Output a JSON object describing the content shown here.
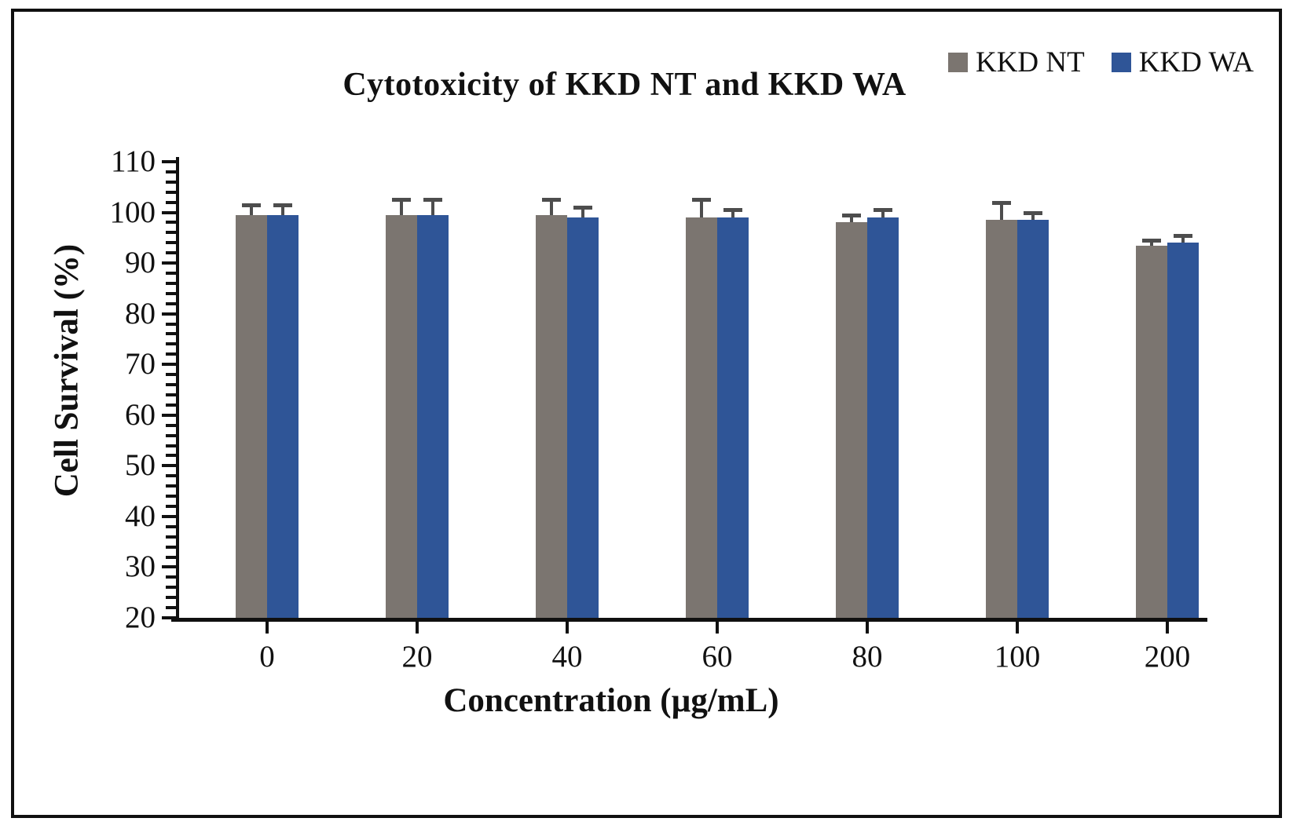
{
  "chart_data": {
    "type": "bar",
    "title": "Cytotoxicity of KKD NT and KKD WA",
    "xlabel": "Concentration (µg/mL)",
    "ylabel": "Cell Survival (%)",
    "categories": [
      "0",
      "20",
      "40",
      "60",
      "80",
      "100",
      "200"
    ],
    "series": [
      {
        "name": "KKD NT",
        "color": "#7b7570",
        "values": [
          99.5,
          99.5,
          99.5,
          99.0,
          98.0,
          98.5,
          93.5
        ],
        "errors": [
          2.0,
          3.0,
          3.0,
          3.5,
          1.5,
          3.5,
          1.0
        ]
      },
      {
        "name": "KKD WA",
        "color": "#2f5597",
        "values": [
          99.5,
          99.5,
          99.0,
          99.0,
          99.0,
          98.5,
          94.0
        ],
        "errors": [
          2.0,
          3.0,
          2.0,
          1.5,
          1.5,
          1.5,
          1.5
        ]
      }
    ],
    "ylim": [
      20,
      110
    ],
    "y_major_ticks": [
      110,
      100,
      90,
      80,
      70,
      60,
      50,
      40,
      30,
      20
    ],
    "y_minor_tick_step": 2,
    "grid": false,
    "legend_position": "top-right",
    "error_bar_color": "#4d4d4d",
    "axis_color": "#101010",
    "frame_color": "#101010"
  }
}
